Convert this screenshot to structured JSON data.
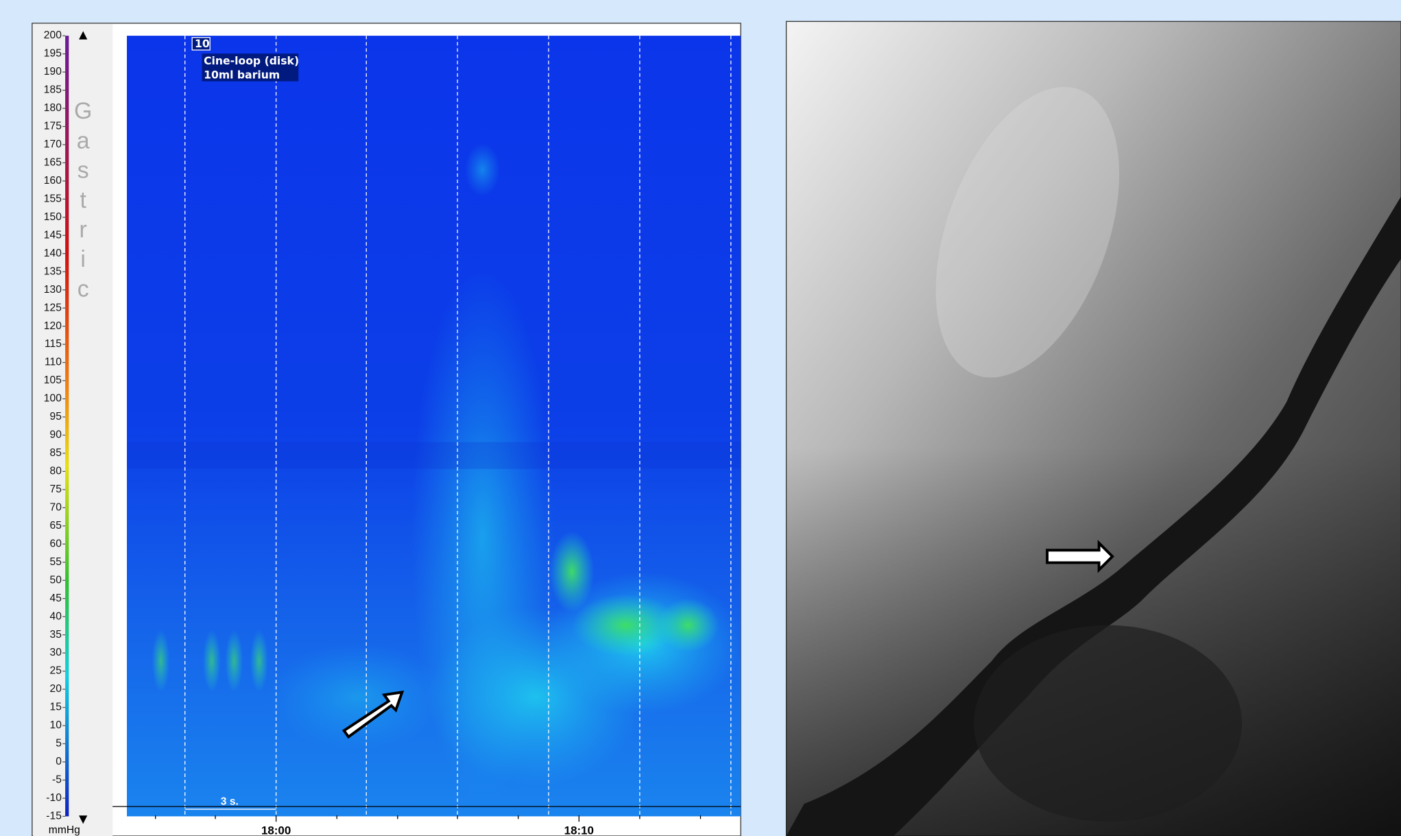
{
  "scale": {
    "ticks": [
      200,
      195,
      190,
      185,
      180,
      175,
      170,
      165,
      160,
      155,
      150,
      145,
      140,
      135,
      130,
      125,
      120,
      115,
      110,
      105,
      100,
      95,
      90,
      85,
      80,
      75,
      70,
      65,
      60,
      55,
      50,
      45,
      40,
      35,
      30,
      25,
      20,
      15,
      10,
      5,
      0,
      -5,
      -10,
      -15
    ],
    "unit": "mmHg",
    "label": "Gastric"
  },
  "plot": {
    "event_number": "10",
    "event_lines": [
      "Cine-loop (disk)",
      "10ml barium"
    ],
    "scale_bar": "3 s.",
    "time_labels": [
      "18:00",
      "18:10"
    ]
  }
}
